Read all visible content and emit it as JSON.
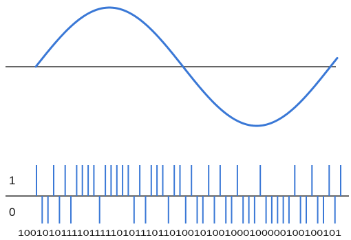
{
  "level_high_label": "1",
  "level_low_label": "0",
  "bit_string": "100101011110111110101110110100101001000100000100100101",
  "colors": {
    "wave": "#3a78d6",
    "axis": "#666666",
    "pulse": "#3a78d6",
    "text": "#111111"
  }
}
